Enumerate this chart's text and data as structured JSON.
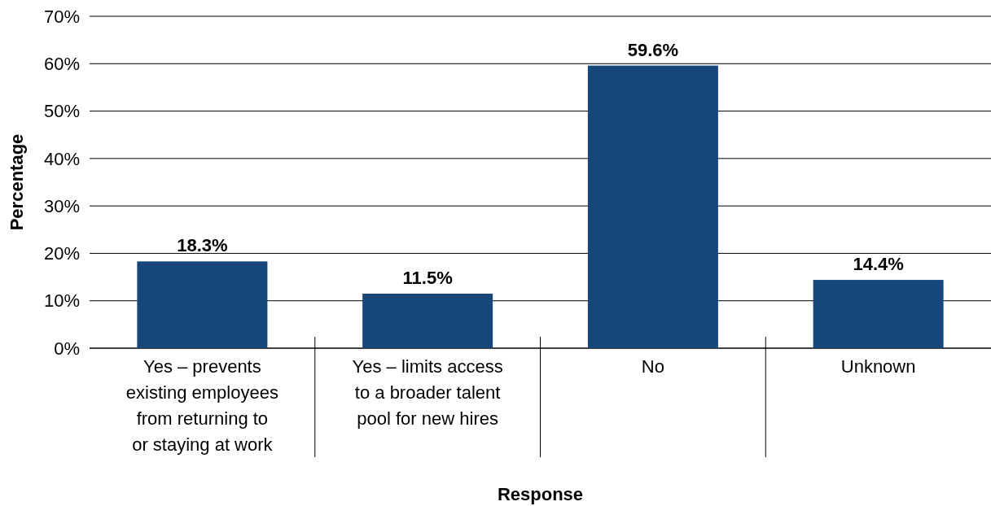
{
  "chart_data": {
    "type": "bar",
    "xlabel": "Response",
    "ylabel": "Percentage",
    "categories": [
      "Yes – prevents existing employees from returning to or staying at work",
      "Yes – limits access to a broader talent pool for new hires",
      "No",
      "Unknown"
    ],
    "values": [
      18.3,
      11.5,
      59.6,
      14.4
    ],
    "value_labels": [
      "18.3%",
      "11.5%",
      "59.6%",
      "14.4%"
    ],
    "color": "#17477a",
    "ylim": [
      0,
      70
    ],
    "yticks": [
      {
        "value": 0,
        "label": "0%"
      },
      {
        "value": 10,
        "label": "10%"
      },
      {
        "value": 20,
        "label": "20%"
      },
      {
        "value": 30,
        "label": "30%"
      },
      {
        "value": 40,
        "label": "40%"
      },
      {
        "value": 50,
        "label": "50%"
      },
      {
        "value": 60,
        "label": "60%"
      },
      {
        "value": 70,
        "label": "70%"
      }
    ],
    "grid": "y"
  }
}
